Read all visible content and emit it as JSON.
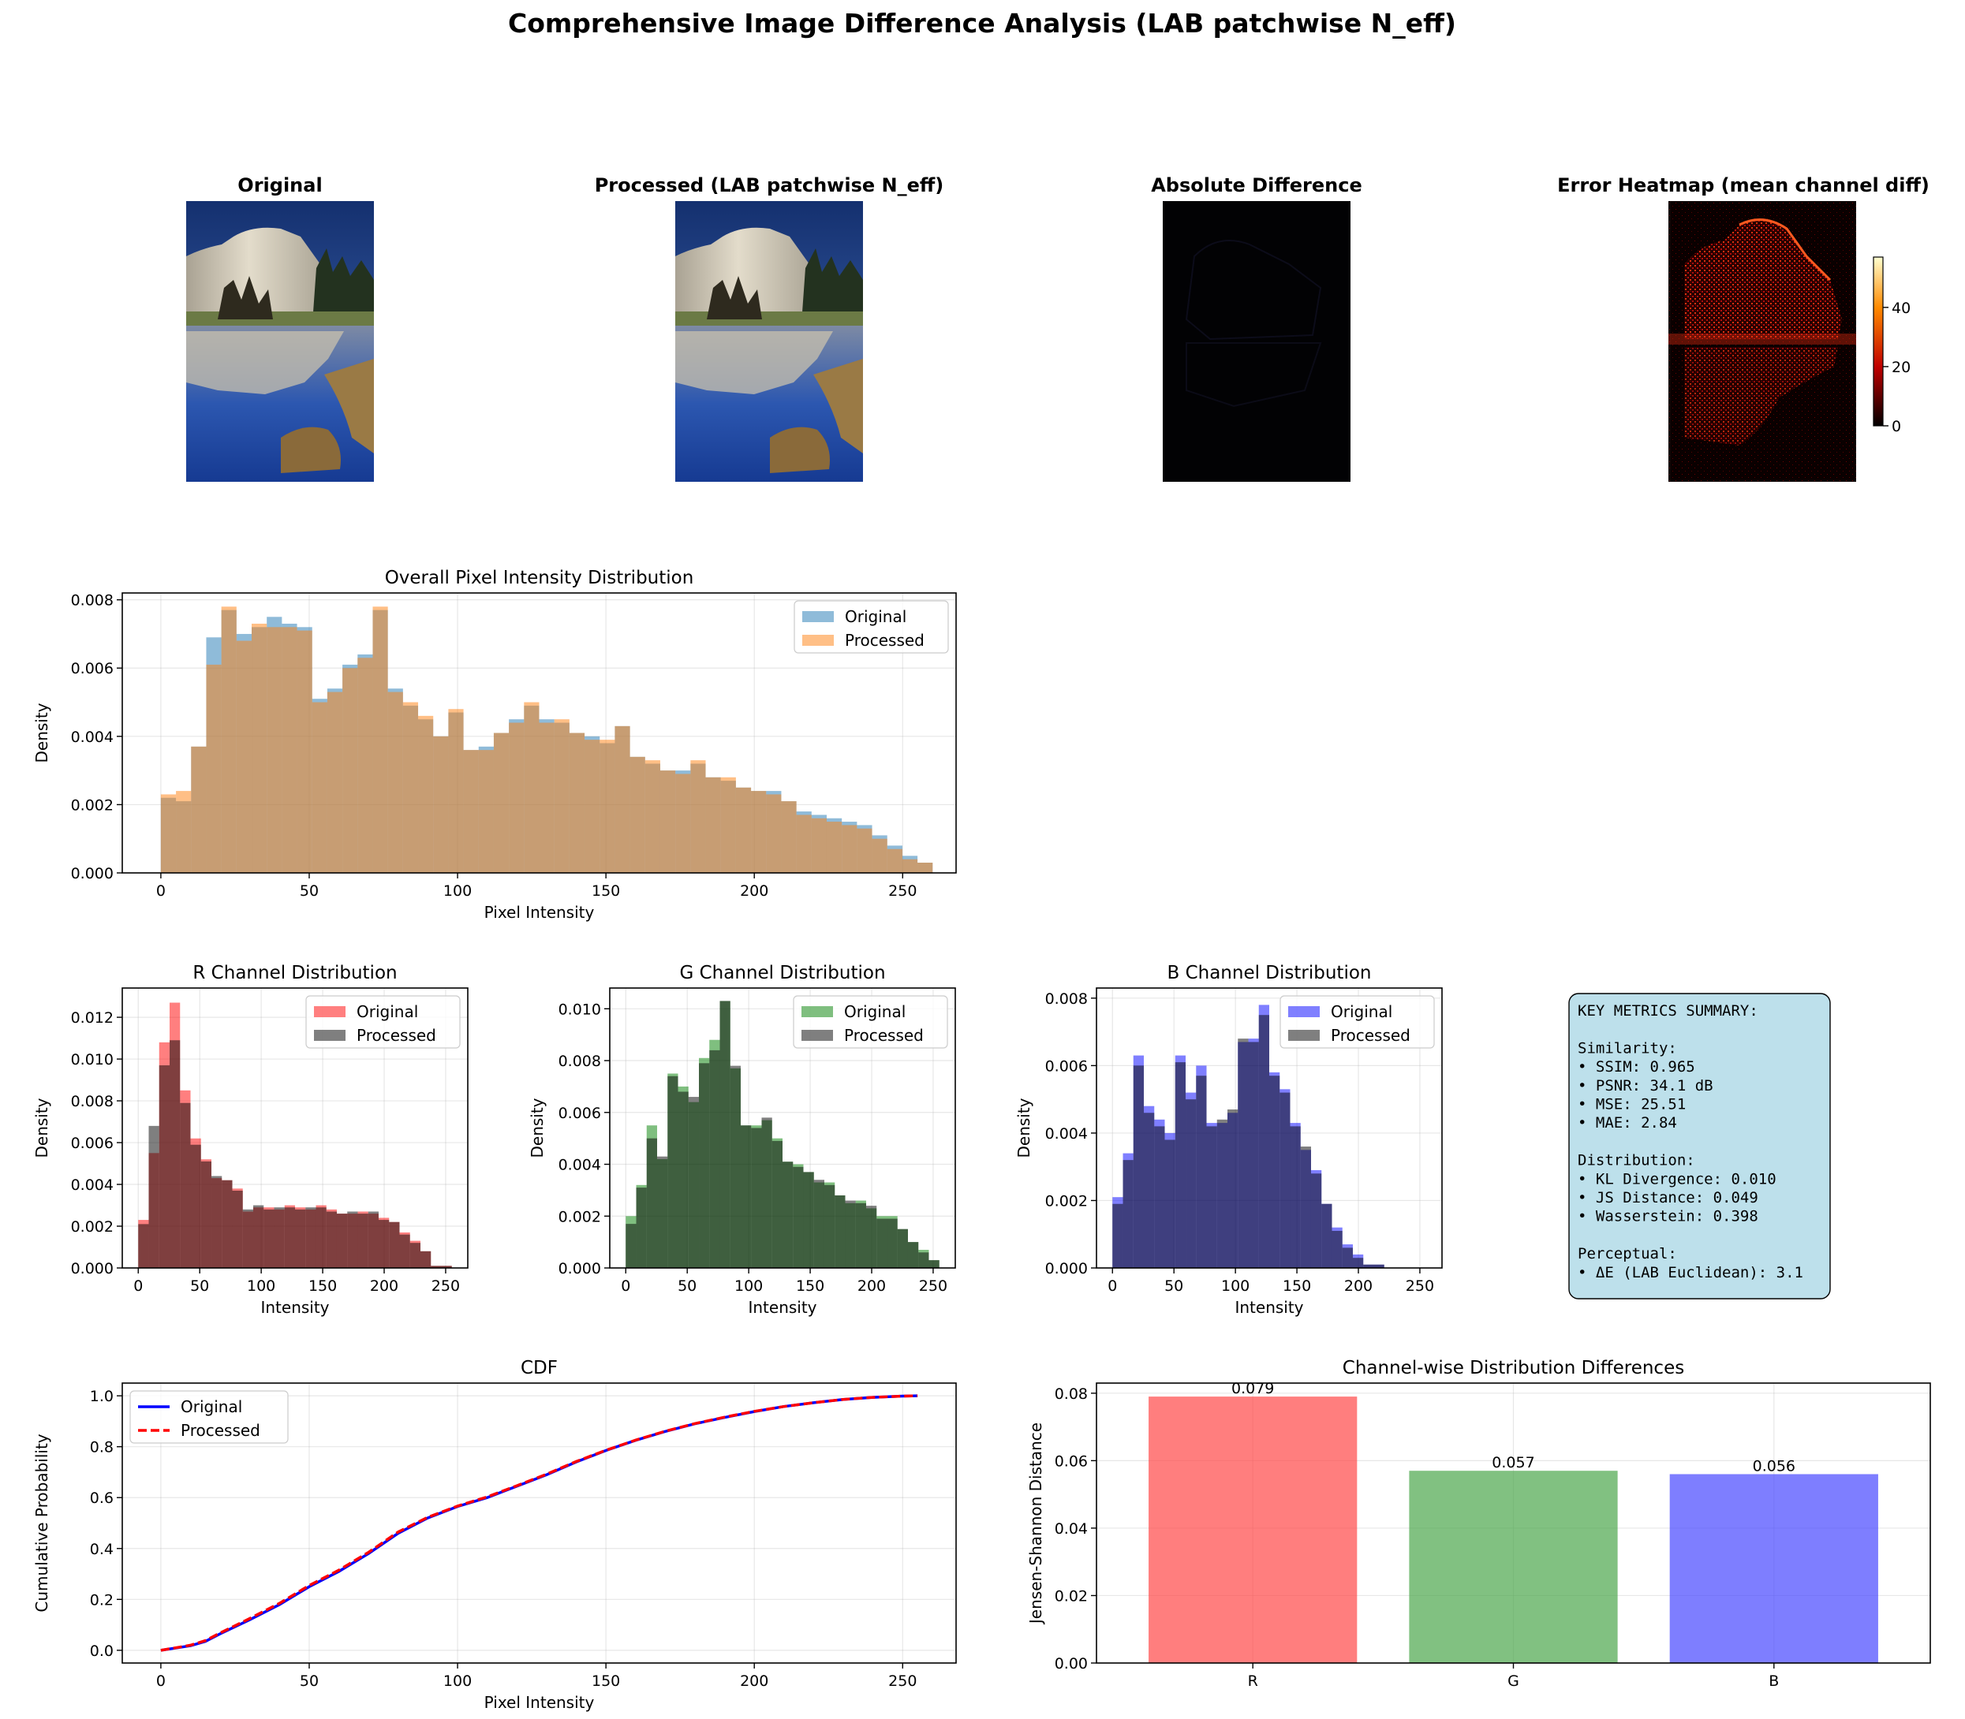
{
  "figure": {
    "suptitle": "Comprehensive Image Difference Analysis (LAB patchwise N_eff)"
  },
  "images": {
    "original_title": "Original",
    "processed_title": "Processed (LAB patchwise N_eff)",
    "difference_title": "Absolute Difference",
    "heatmap_title": "Error Heatmap (mean channel diff)",
    "colorbar_ticks": [
      "0",
      "20",
      "40"
    ],
    "colorbar_range": [
      0,
      57
    ],
    "colors": {
      "sky_top": "#1d3c86",
      "sky_bottom": "#3f69b8",
      "rock": "#d8d0bd",
      "trees": "#2f3a24",
      "water": "#1f4aa0",
      "heat_low": "#000000",
      "heat_high": "#ffff66"
    }
  },
  "chart_data": [
    {
      "id": "overall",
      "type": "bar",
      "title": "Overall Pixel Intensity Distribution",
      "xlabel": "Pixel Intensity",
      "ylabel": "Density",
      "xlim": [
        -13,
        268
      ],
      "ylim": [
        0,
        0.0082
      ],
      "xticks": [
        0,
        50,
        100,
        150,
        200,
        250
      ],
      "yticks": [
        0,
        0.002,
        0.004,
        0.006,
        0.008
      ],
      "ytick_labels": [
        "0.000",
        "0.002",
        "0.004",
        "0.006",
        "0.008"
      ],
      "bin_start": 0,
      "bin_width": 5.1,
      "legend": [
        "Original",
        "Processed"
      ],
      "colors": {
        "Original": "#1f77b4",
        "Processed": "#ff7f0e"
      },
      "series": [
        {
          "name": "Original",
          "values": [
            0.0022,
            0.0021,
            0.0037,
            0.0069,
            0.0077,
            0.007,
            0.0072,
            0.0075,
            0.0073,
            0.0072,
            0.0051,
            0.0054,
            0.0061,
            0.0064,
            0.0077,
            0.0054,
            0.0049,
            0.0045,
            0.004,
            0.0047,
            0.0036,
            0.0037,
            0.0041,
            0.0045,
            0.0049,
            0.0045,
            0.0044,
            0.0041,
            0.004,
            0.0038,
            0.0043,
            0.0034,
            0.0032,
            0.003,
            0.003,
            0.0032,
            0.0028,
            0.0027,
            0.0025,
            0.0024,
            0.0024,
            0.0021,
            0.0018,
            0.0017,
            0.0016,
            0.0015,
            0.0014,
            0.0011,
            0.0008,
            0.0005,
            0.0003
          ]
        },
        {
          "name": "Processed",
          "values": [
            0.0023,
            0.0024,
            0.0037,
            0.0061,
            0.0078,
            0.0068,
            0.0073,
            0.0072,
            0.0072,
            0.0071,
            0.005,
            0.0053,
            0.006,
            0.0063,
            0.0078,
            0.0053,
            0.005,
            0.0046,
            0.004,
            0.0048,
            0.0036,
            0.0036,
            0.0041,
            0.0044,
            0.005,
            0.0044,
            0.0045,
            0.0041,
            0.0039,
            0.0039,
            0.0043,
            0.0034,
            0.0033,
            0.003,
            0.0029,
            0.0033,
            0.0028,
            0.0028,
            0.0025,
            0.0024,
            0.0023,
            0.0021,
            0.0017,
            0.0016,
            0.0015,
            0.0014,
            0.0013,
            0.001,
            0.0007,
            0.0004,
            0.0003
          ]
        }
      ]
    },
    {
      "id": "r",
      "type": "bar",
      "title": "R Channel Distribution",
      "xlabel": "Intensity",
      "ylabel": "Density",
      "xlim": [
        -13,
        268
      ],
      "ylim": [
        0,
        0.0134
      ],
      "xticks": [
        0,
        50,
        100,
        150,
        200,
        250
      ],
      "yticks": [
        0,
        0.002,
        0.004,
        0.006,
        0.008,
        0.01,
        0.012
      ],
      "ytick_labels": [
        "0.000",
        "0.002",
        "0.004",
        "0.006",
        "0.008",
        "0.010",
        "0.012"
      ],
      "bin_start": 0,
      "bin_width": 8.5,
      "legend": [
        "Original",
        "Processed"
      ],
      "colors": {
        "Original": "#ff0000",
        "Processed": "#000000"
      },
      "series": [
        {
          "name": "Original",
          "values": [
            0.0023,
            0.0055,
            0.0108,
            0.0127,
            0.0085,
            0.0062,
            0.0052,
            0.0043,
            0.0042,
            0.0038,
            0.0027,
            0.0029,
            0.0029,
            0.0028,
            0.003,
            0.0029,
            0.0028,
            0.003,
            0.0028,
            0.0026,
            0.0026,
            0.0027,
            0.0026,
            0.0024,
            0.0022,
            0.0017,
            0.0013,
            0.0008,
            0.0001,
            0.0001
          ]
        },
        {
          "name": "Processed",
          "values": [
            0.0021,
            0.0068,
            0.0097,
            0.0109,
            0.0079,
            0.0059,
            0.0051,
            0.0044,
            0.0042,
            0.0037,
            0.0028,
            0.003,
            0.0028,
            0.0029,
            0.0029,
            0.0028,
            0.0029,
            0.0029,
            0.0027,
            0.0026,
            0.0027,
            0.0026,
            0.0027,
            0.0023,
            0.0022,
            0.0016,
            0.0012,
            0.0008,
            0.0001,
            0.0001
          ]
        }
      ]
    },
    {
      "id": "g",
      "type": "bar",
      "title": "G Channel Distribution",
      "xlabel": "Intensity",
      "ylabel": "Density",
      "xlim": [
        -13,
        268
      ],
      "ylim": [
        0,
        0.0108
      ],
      "xticks": [
        0,
        50,
        100,
        150,
        200,
        250
      ],
      "yticks": [
        0,
        0.002,
        0.004,
        0.006,
        0.008,
        0.01
      ],
      "ytick_labels": [
        "0.000",
        "0.002",
        "0.004",
        "0.006",
        "0.008",
        "0.010"
      ],
      "bin_start": 0,
      "bin_width": 8.5,
      "legend": [
        "Original",
        "Processed"
      ],
      "colors": {
        "Original": "#008000",
        "Processed": "#000000"
      },
      "series": [
        {
          "name": "Original",
          "values": [
            0.002,
            0.0032,
            0.0055,
            0.0042,
            0.0075,
            0.007,
            0.0064,
            0.0081,
            0.0088,
            0.0103,
            0.0077,
            0.0055,
            0.0055,
            0.0057,
            0.005,
            0.0041,
            0.004,
            0.0037,
            0.0033,
            0.0033,
            0.0028,
            0.0025,
            0.0026,
            0.0023,
            0.002,
            0.002,
            0.0015,
            0.001,
            0.0007,
            0.0003
          ]
        },
        {
          "name": "Processed",
          "values": [
            0.0017,
            0.0031,
            0.005,
            0.0043,
            0.0074,
            0.0068,
            0.0066,
            0.0079,
            0.0084,
            0.0103,
            0.0078,
            0.0055,
            0.0054,
            0.0058,
            0.0049,
            0.0041,
            0.0039,
            0.0037,
            0.0034,
            0.0032,
            0.0028,
            0.0026,
            0.0025,
            0.0024,
            0.0019,
            0.0019,
            0.0015,
            0.001,
            0.0006,
            0.0003
          ]
        }
      ]
    },
    {
      "id": "b",
      "type": "bar",
      "title": "B Channel Distribution",
      "xlabel": "Intensity",
      "ylabel": "Density",
      "xlim": [
        -13,
        268
      ],
      "ylim": [
        0,
        0.0083
      ],
      "xticks": [
        0,
        50,
        100,
        150,
        200,
        250
      ],
      "yticks": [
        0,
        0.002,
        0.004,
        0.006,
        0.008
      ],
      "ytick_labels": [
        "0.000",
        "0.002",
        "0.004",
        "0.006",
        "0.008"
      ],
      "bin_start": 0,
      "bin_width": 8.5,
      "legend": [
        "Original",
        "Processed"
      ],
      "colors": {
        "Original": "#0000ff",
        "Processed": "#000000"
      },
      "series": [
        {
          "name": "Original",
          "values": [
            0.0021,
            0.0034,
            0.0063,
            0.0048,
            0.0044,
            0.004,
            0.0063,
            0.0052,
            0.006,
            0.0043,
            0.0043,
            0.0046,
            0.0067,
            0.0068,
            0.0078,
            0.0058,
            0.0053,
            0.0043,
            0.0035,
            0.0029,
            0.0019,
            0.0012,
            0.0007,
            0.0004,
            0.0001,
            0.0001
          ]
        },
        {
          "name": "Processed",
          "values": [
            0.0019,
            0.0032,
            0.006,
            0.0046,
            0.0042,
            0.0038,
            0.0061,
            0.005,
            0.0057,
            0.0042,
            0.0044,
            0.0047,
            0.0068,
            0.0067,
            0.0075,
            0.0057,
            0.0052,
            0.0042,
            0.0036,
            0.0028,
            0.0019,
            0.0011,
            0.0006,
            0.0003,
            0.0001,
            0.0001
          ]
        }
      ]
    },
    {
      "id": "cdf",
      "type": "line",
      "title": "CDF",
      "xlabel": "Pixel Intensity",
      "ylabel": "Cumulative Probability",
      "xlim": [
        -13,
        268
      ],
      "ylim": [
        -0.05,
        1.05
      ],
      "xticks": [
        0,
        50,
        100,
        150,
        200,
        250
      ],
      "yticks": [
        0,
        0.2,
        0.4,
        0.6,
        0.8,
        1.0
      ],
      "ytick_labels": [
        "0.0",
        "0.2",
        "0.4",
        "0.6",
        "0.8",
        "1.0"
      ],
      "legend": [
        "Original",
        "Processed"
      ],
      "colors": {
        "Original": "#0000ff",
        "Processed": "#ff0000"
      },
      "x": [
        0,
        10,
        15,
        20,
        30,
        40,
        50,
        60,
        70,
        80,
        90,
        100,
        110,
        120,
        130,
        140,
        150,
        160,
        170,
        180,
        190,
        200,
        210,
        220,
        230,
        240,
        250,
        255
      ],
      "series": [
        {
          "name": "Original",
          "values": [
            0.0,
            0.018,
            0.035,
            0.065,
            0.12,
            0.18,
            0.25,
            0.31,
            0.38,
            0.46,
            0.52,
            0.565,
            0.6,
            0.645,
            0.69,
            0.74,
            0.785,
            0.825,
            0.86,
            0.89,
            0.915,
            0.938,
            0.958,
            0.973,
            0.986,
            0.994,
            0.999,
            1.0
          ]
        },
        {
          "name": "Processed",
          "values": [
            0.0,
            0.02,
            0.038,
            0.068,
            0.125,
            0.185,
            0.255,
            0.315,
            0.385,
            0.465,
            0.523,
            0.567,
            0.603,
            0.647,
            0.692,
            0.742,
            0.786,
            0.826,
            0.861,
            0.891,
            0.916,
            0.939,
            0.958,
            0.973,
            0.986,
            0.994,
            0.999,
            1.0
          ]
        }
      ]
    },
    {
      "id": "jsd",
      "type": "bar",
      "title": "Channel-wise Distribution Differences",
      "xlabel": "",
      "ylabel": "Jensen-Shannon Distance",
      "ylim": [
        0,
        0.083
      ],
      "yticks": [
        0,
        0.02,
        0.04,
        0.06,
        0.08
      ],
      "ytick_labels": [
        "0.00",
        "0.02",
        "0.04",
        "0.06",
        "0.08"
      ],
      "categories": [
        "R",
        "G",
        "B"
      ],
      "values": [
        0.079,
        0.057,
        0.056
      ],
      "value_labels": [
        "0.079",
        "0.057",
        "0.056"
      ],
      "colors": [
        "#ff4747",
        "#4ba64b",
        "#4747ff"
      ]
    }
  ],
  "metrics": {
    "lines": [
      "KEY METRICS SUMMARY:",
      "",
      "Similarity:",
      "• SSIM: 0.965",
      "• PSNR: 34.1 dB",
      "• MSE: 25.51",
      "• MAE: 2.84",
      "",
      "Distribution:",
      "• KL Divergence: 0.010",
      "• JS Distance: 0.049",
      "• Wasserstein: 0.398",
      "",
      "Perceptual:",
      "• ΔE (LAB Euclidean): 3.1"
    ],
    "box_color": "#add8e6"
  }
}
